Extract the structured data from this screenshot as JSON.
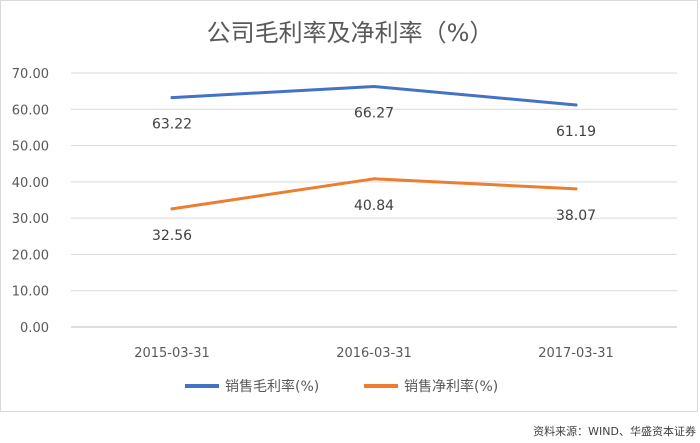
{
  "source_note": "资料来源：WIND、华盛资本证券",
  "chart_data": {
    "type": "line",
    "title": "公司毛利率及净利率（%）",
    "xlabel": "",
    "ylabel": "",
    "categories": [
      "2015-03-31",
      "2016-03-31",
      "2017-03-31"
    ],
    "yticks": [
      "0.00",
      "10.00",
      "20.00",
      "30.00",
      "40.00",
      "50.00",
      "60.00",
      "70.00"
    ],
    "ylim": [
      0,
      70
    ],
    "grid": true,
    "legend_position": "bottom",
    "series": [
      {
        "name": "销售毛利率(%)",
        "color": "#4472C4",
        "values": [
          63.22,
          66.27,
          61.19
        ],
        "labels": [
          "63.22",
          "66.27",
          "61.19"
        ]
      },
      {
        "name": "销售净利率(%)",
        "color": "#ED7D31",
        "values": [
          32.56,
          40.84,
          38.07
        ],
        "labels": [
          "32.56",
          "40.84",
          "38.07"
        ]
      }
    ]
  }
}
